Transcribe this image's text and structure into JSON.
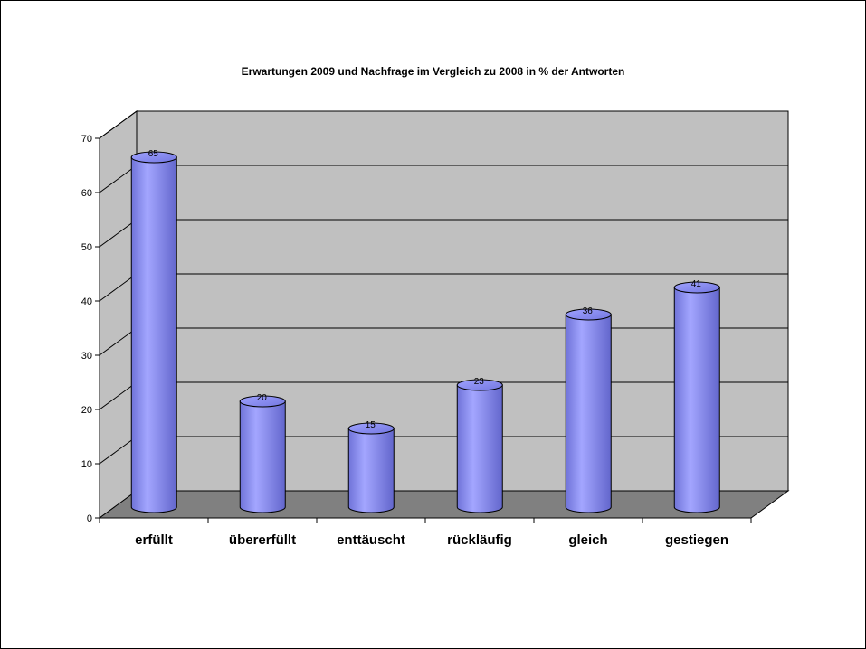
{
  "chart_data": {
    "type": "bar",
    "title": "Erwartungen 2009 und Nachfrage im Vergleich zu 2008 in % der Antworten",
    "categories": [
      "erfüllt",
      "übererfüllt",
      "enttäuscht",
      "rückläufig",
      "gleich",
      "gestiegen"
    ],
    "values": [
      65,
      20,
      15,
      23,
      36,
      41
    ],
    "ylim": [
      0,
      70
    ],
    "yticks": [
      "0",
      "10",
      "20",
      "30",
      "40",
      "50",
      "60",
      "70"
    ],
    "xlabel": "",
    "ylabel": "",
    "grid": true,
    "legend": "none",
    "bar_color": "#8b8ff0",
    "wall_color": "#c0c0c0",
    "floor_color": "#808080"
  }
}
